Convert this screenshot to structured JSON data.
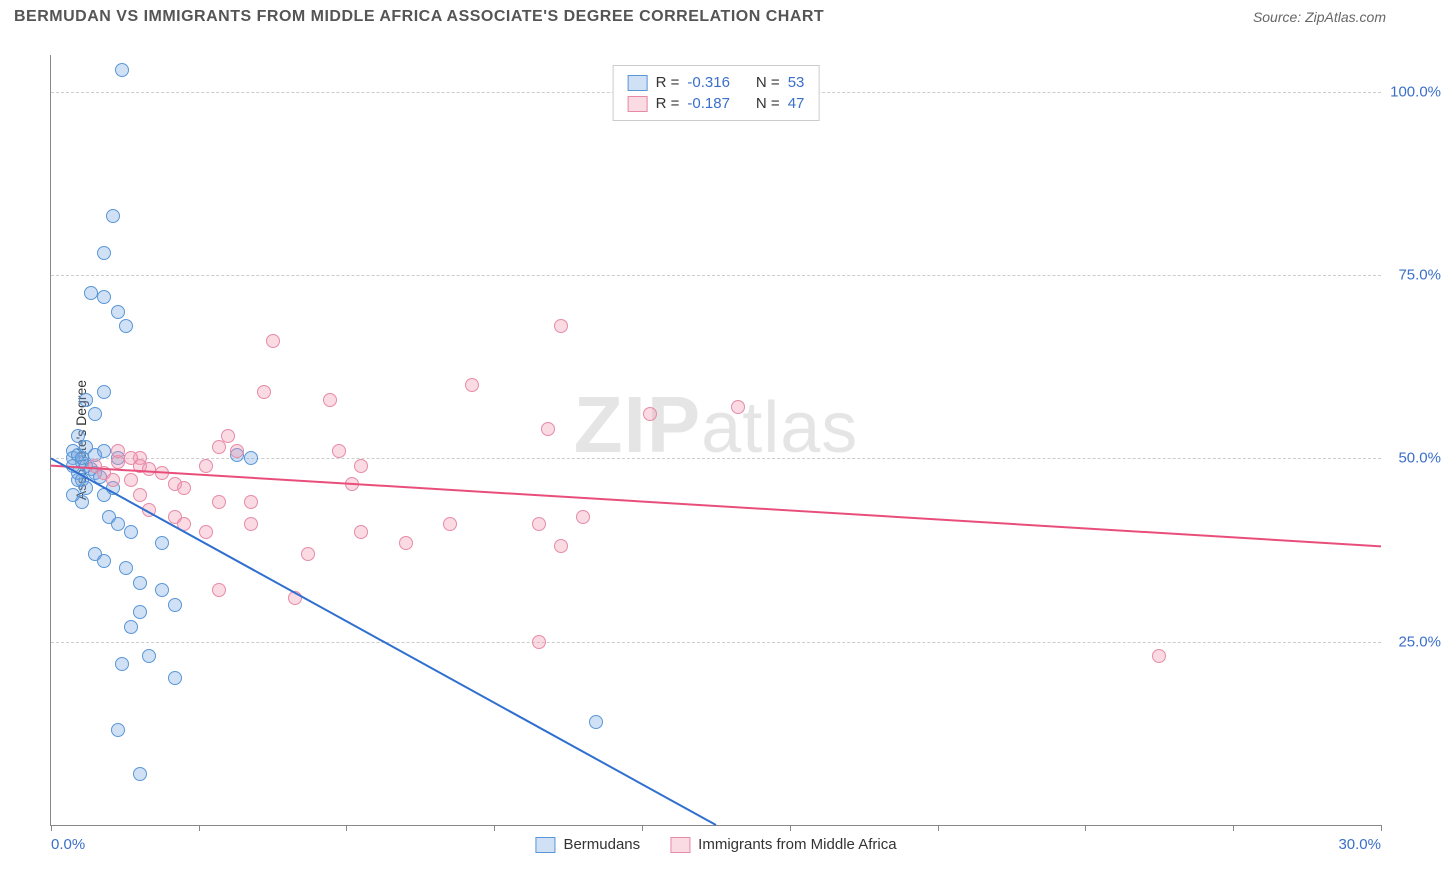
{
  "header": {
    "title": "BERMUDAN VS IMMIGRANTS FROM MIDDLE AFRICA ASSOCIATE'S DEGREE CORRELATION CHART",
    "source": "Source: ZipAtlas.com"
  },
  "chart": {
    "type": "scatter",
    "ylabel": "Associate's Degree",
    "xlim": [
      0,
      30
    ],
    "ylim": [
      0,
      105
    ],
    "xtick_labels": [
      "0.0%",
      "30.0%"
    ],
    "xtick_label_positions": [
      0,
      30
    ],
    "ytick_labels": [
      "25.0%",
      "50.0%",
      "75.0%",
      "100.0%"
    ],
    "ytick_positions": [
      25,
      50,
      75,
      100
    ],
    "xtick_positions": [
      0,
      3.33,
      6.66,
      10,
      13.33,
      16.66,
      20,
      23.33,
      26.66,
      30
    ],
    "grid_color": "#cccccc",
    "background_color": "#ffffff",
    "axis_color": "#888888",
    "y_label_color": "#3b6fc9",
    "point_radius": 7,
    "series": {
      "bermudans": {
        "label": "Bermudans",
        "fill": "rgba(120,170,225,0.35)",
        "stroke": "#5a96d6",
        "r_value": "-0.316",
        "n_value": "53",
        "trend": {
          "x1": 0,
          "y1": 50,
          "x2": 15,
          "y2": 0,
          "color": "#2f6fd0",
          "width": 2
        },
        "points": [
          [
            1.6,
            103
          ],
          [
            1.4,
            83
          ],
          [
            1.2,
            78
          ],
          [
            0.9,
            72.5
          ],
          [
            1.2,
            72
          ],
          [
            1.5,
            70
          ],
          [
            1.7,
            68
          ],
          [
            1.2,
            59
          ],
          [
            0.8,
            58
          ],
          [
            1.0,
            56
          ],
          [
            0.6,
            53
          ],
          [
            0.5,
            51
          ],
          [
            0.5,
            50
          ],
          [
            1.2,
            51
          ],
          [
            1.0,
            50.5
          ],
          [
            1.5,
            50
          ],
          [
            0.7,
            49.5
          ],
          [
            0.8,
            49
          ],
          [
            0.9,
            48.5
          ],
          [
            1.0,
            48
          ],
          [
            1.1,
            47.5
          ],
          [
            0.6,
            47
          ],
          [
            4.5,
            50
          ],
          [
            4.2,
            50.5
          ],
          [
            1.4,
            46
          ],
          [
            1.2,
            45
          ],
          [
            0.7,
            44
          ],
          [
            1.3,
            42
          ],
          [
            1.5,
            41
          ],
          [
            1.8,
            40
          ],
          [
            2.5,
            38.5
          ],
          [
            1.0,
            37
          ],
          [
            1.2,
            36
          ],
          [
            1.7,
            35
          ],
          [
            2.0,
            33
          ],
          [
            2.5,
            32
          ],
          [
            2.8,
            30
          ],
          [
            2.0,
            29
          ],
          [
            1.8,
            27
          ],
          [
            2.2,
            23
          ],
          [
            1.6,
            22
          ],
          [
            2.8,
            20
          ],
          [
            1.5,
            13
          ],
          [
            2.0,
            7
          ],
          [
            12.3,
            14
          ],
          [
            0.6,
            50.5
          ],
          [
            0.7,
            50
          ],
          [
            0.8,
            51.5
          ],
          [
            0.5,
            49
          ],
          [
            0.6,
            48
          ],
          [
            0.7,
            47
          ],
          [
            0.8,
            46
          ],
          [
            0.5,
            45
          ]
        ]
      },
      "immigrants": {
        "label": "Immigrants from Middle Africa",
        "fill": "rgba(240,150,175,0.35)",
        "stroke": "#e78aa8",
        "r_value": "-0.187",
        "n_value": "47",
        "trend": {
          "x1": 0,
          "y1": 49,
          "x2": 30,
          "y2": 38,
          "color": "#e94e7b",
          "width": 2
        },
        "points": [
          [
            11.5,
            68
          ],
          [
            5.0,
            66
          ],
          [
            4.8,
            59
          ],
          [
            6.3,
            58
          ],
          [
            9.5,
            60
          ],
          [
            11.2,
            54
          ],
          [
            15.5,
            57
          ],
          [
            4.0,
            53
          ],
          [
            3.8,
            51.5
          ],
          [
            6.5,
            51
          ],
          [
            7.0,
            49
          ],
          [
            6.8,
            46.5
          ],
          [
            7.0,
            40
          ],
          [
            8.0,
            38.5
          ],
          [
            9.0,
            41
          ],
          [
            11.0,
            41
          ],
          [
            11.5,
            38
          ],
          [
            12.0,
            42
          ],
          [
            13.5,
            56
          ],
          [
            2.0,
            50
          ],
          [
            1.5,
            49.5
          ],
          [
            2.5,
            48
          ],
          [
            2.8,
            46.5
          ],
          [
            3.0,
            46
          ],
          [
            3.5,
            49
          ],
          [
            1.8,
            47
          ],
          [
            1.0,
            49
          ],
          [
            1.2,
            48
          ],
          [
            1.4,
            47
          ],
          [
            2.0,
            45
          ],
          [
            2.2,
            43
          ],
          [
            2.8,
            42
          ],
          [
            3.0,
            41
          ],
          [
            3.5,
            40
          ],
          [
            3.8,
            44
          ],
          [
            4.5,
            41
          ],
          [
            3.8,
            32
          ],
          [
            5.5,
            31
          ],
          [
            11.0,
            25
          ],
          [
            25.0,
            23
          ],
          [
            5.8,
            37
          ],
          [
            1.5,
            51
          ],
          [
            1.8,
            50
          ],
          [
            2.0,
            49
          ],
          [
            2.2,
            48.5
          ],
          [
            4.2,
            51
          ],
          [
            4.5,
            44
          ]
        ]
      }
    },
    "legend_top": {
      "rows": [
        {
          "swatch_fill": "rgba(120,170,225,0.35)",
          "swatch_stroke": "#5a96d6",
          "r_label": "R =",
          "r_val": "-0.316",
          "n_label": "N =",
          "n_val": "53"
        },
        {
          "swatch_fill": "rgba(240,150,175,0.35)",
          "swatch_stroke": "#e78aa8",
          "r_label": "R =",
          "r_val": "-0.187",
          "n_label": "N =",
          "n_val": "47"
        }
      ]
    },
    "watermark": {
      "bold": "ZIP",
      "rest": "atlas"
    }
  }
}
